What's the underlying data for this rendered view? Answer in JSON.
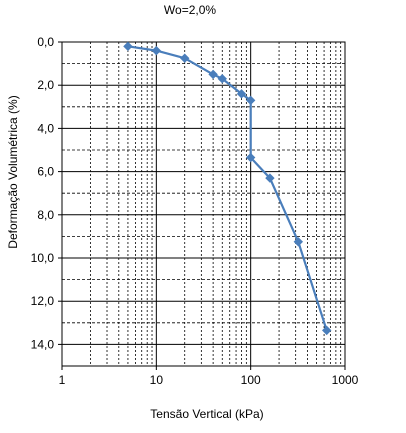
{
  "chart_data": {
    "type": "scatter",
    "title": "Wo=2,0%",
    "xlabel": "Tensão Vertical (kPa)",
    "ylabel": "Deformação Volumétrica (%)",
    "x_scale": "log",
    "xlim": [
      1,
      1000
    ],
    "ylim": [
      0,
      15
    ],
    "y_inverted": true,
    "x_ticks": [
      1,
      10,
      100,
      1000
    ],
    "x_tick_labels": [
      "1",
      "10",
      "100",
      "1000"
    ],
    "y_ticks": [
      0,
      2,
      4,
      6,
      8,
      10,
      12,
      14
    ],
    "y_tick_labels": [
      "0,0",
      "2,0",
      "4,0",
      "6,0",
      "8,0",
      "10,0",
      "12,0",
      "14,0"
    ],
    "grid": true,
    "legend": "none",
    "series": [
      {
        "color": "#4a7ebb",
        "marker": "diamond",
        "x": [
          5,
          10,
          20,
          40,
          50,
          80,
          100,
          100,
          160,
          320,
          640
        ],
        "y": [
          0.2,
          0.4,
          0.75,
          1.5,
          1.7,
          2.4,
          2.7,
          5.35,
          6.3,
          9.25,
          13.35
        ]
      }
    ]
  }
}
